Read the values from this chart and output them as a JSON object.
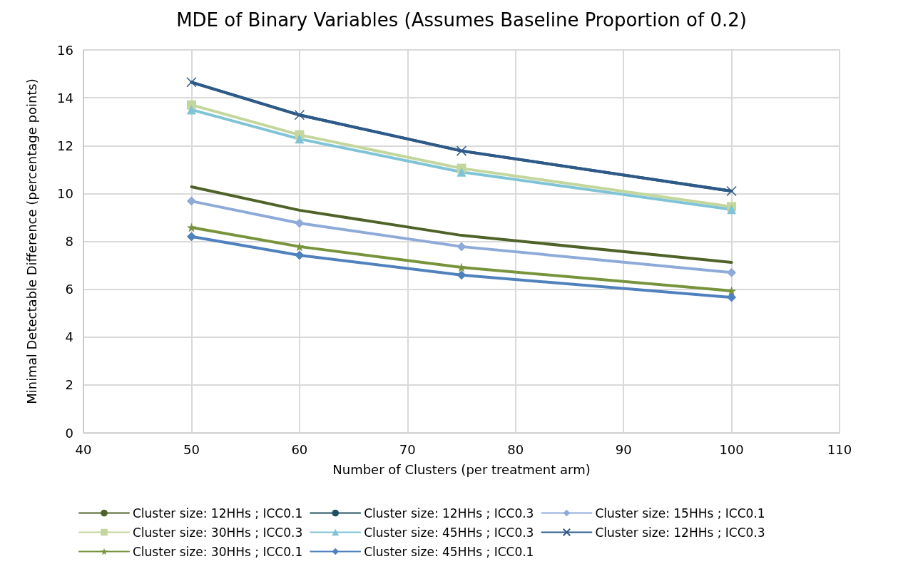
{
  "chart_data": {
    "type": "line",
    "title": "MDE of Binary Variables (Assumes Baseline Proportion of 0.2)",
    "xlabel": "Number of Clusters (per treatment arm)",
    "ylabel": "Minimal Detectable Difference (percentage points)",
    "x": [
      50,
      60,
      75,
      100
    ],
    "xlim": [
      40,
      110
    ],
    "xticks": [
      40,
      50,
      60,
      70,
      80,
      90,
      100,
      110
    ],
    "ylim": [
      0,
      16
    ],
    "yticks": [
      0,
      2,
      4,
      6,
      8,
      10,
      12,
      14,
      16
    ],
    "grid": true,
    "legend": "bottom",
    "line_style": "solid",
    "series": [
      {
        "name": "Cluster size: 12HHs ; ICC0.1",
        "color": "#4f6228",
        "marker": "none",
        "values": [
          10.28,
          9.3,
          8.25,
          7.12
        ]
      },
      {
        "name": "Cluster size: 12HHs ; ICC0.3",
        "color": "#1f5060",
        "marker": "none",
        "values": [
          14.65,
          13.28,
          11.78,
          10.1
        ]
      },
      {
        "name": "Cluster size: 15HHs ; ICC0.1",
        "color": "#8eaad8",
        "marker": "diamond",
        "values": [
          9.68,
          8.76,
          7.78,
          6.7
        ]
      },
      {
        "name": "Cluster size: 30HHs ; ICC0.3",
        "color": "#c3d69b",
        "marker": "square",
        "values": [
          13.7,
          12.45,
          11.05,
          9.45
        ]
      },
      {
        "name": "Cluster size: 45HHs ; ICC0.3",
        "color": "#7fc4d6",
        "marker": "triangle",
        "values": [
          13.5,
          12.28,
          10.9,
          9.33
        ]
      },
      {
        "name": "Cluster size: 12HHs ; ICC0.3",
        "color": "#2e5a8a",
        "marker": "cross",
        "values": [
          14.65,
          13.28,
          11.78,
          10.1
        ]
      },
      {
        "name": "Cluster size: 30HHs ; ICC0.1",
        "color": "#77933c",
        "marker": "star",
        "values": [
          8.58,
          7.78,
          6.91,
          5.93
        ]
      },
      {
        "name": "Cluster size: 45HHs ; ICC0.1",
        "color": "#4f81bd",
        "marker": "diamond",
        "values": [
          8.2,
          7.42,
          6.59,
          5.66
        ]
      }
    ]
  }
}
